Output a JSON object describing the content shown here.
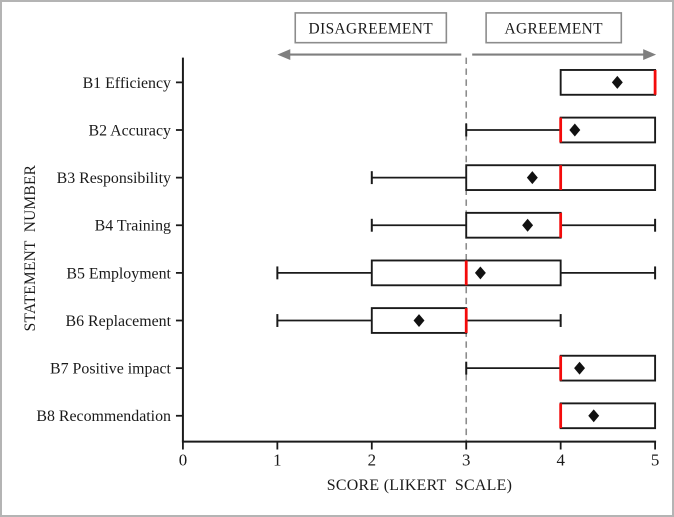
{
  "figure": {
    "description": "Horizontal box plot of Likert-scale survey scores per statement",
    "header": {
      "disagreement_label": "DISAGREEMENT",
      "agreement_label": "AGREEMENT"
    },
    "colors": {
      "box_stroke": "#1a1a1a",
      "median_line": "#f40b0b",
      "mean_marker": "#111111",
      "arrow": "#7f7f7f",
      "reference_line": "#8c8c8c",
      "header_box_border": "#8c8c8c",
      "figure_border": "#b4b4b4",
      "axis": "#1a1a1a",
      "background": "#ffffff"
    }
  },
  "chart_data": {
    "type": "boxplot",
    "orientation": "horizontal",
    "title": "",
    "xlabel": "SCORE (LIKERT  SCALE)",
    "ylabel": "STATEMENT  NUMBER",
    "xlim": [
      0,
      5
    ],
    "xticks": [
      "0",
      "1",
      "2",
      "3",
      "4",
      "5"
    ],
    "grid": false,
    "reference_line_x": 3,
    "annotations": [
      {
        "label": "DISAGREEMENT",
        "side": "left_of_reference"
      },
      {
        "label": "AGREEMENT",
        "side": "right_of_reference"
      }
    ],
    "categories": [
      "B1 Efficiency",
      "B2 Accuracy",
      "B3 Responsibility",
      "B4 Training",
      "B5 Employment",
      "B6 Replacement",
      "B7 Positive impact",
      "B8 Recommendation"
    ],
    "series": [
      {
        "name": "B1 Efficiency",
        "min": 4,
        "q1": 4,
        "median": 5,
        "q3": 5,
        "max": 5,
        "mean": 4.6
      },
      {
        "name": "B2 Accuracy",
        "min": 3,
        "q1": 4,
        "median": 4,
        "q3": 5,
        "max": 5,
        "mean": 4.15
      },
      {
        "name": "B3 Responsibility",
        "min": 2,
        "q1": 3,
        "median": 4,
        "q3": 5,
        "max": 5,
        "mean": 3.7
      },
      {
        "name": "B4 Training",
        "min": 2,
        "q1": 3,
        "median": 4,
        "q3": 4,
        "max": 5,
        "mean": 3.65
      },
      {
        "name": "B5 Employment",
        "min": 1,
        "q1": 2,
        "median": 3,
        "q3": 4,
        "max": 5,
        "mean": 3.15
      },
      {
        "name": "B6 Replacement",
        "min": 1,
        "q1": 2,
        "median": 3,
        "q3": 3,
        "max": 4,
        "mean": 2.5
      },
      {
        "name": "B7 Positive impact",
        "min": 3,
        "q1": 4,
        "median": 4,
        "q3": 5,
        "max": 5,
        "mean": 4.2
      },
      {
        "name": "B8 Recommendation",
        "min": 4,
        "q1": 4,
        "median": 4,
        "q3": 5,
        "max": 5,
        "mean": 4.35
      }
    ],
    "legend": null
  }
}
